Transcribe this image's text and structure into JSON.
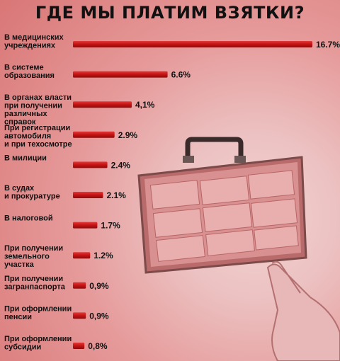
{
  "title": "ГДЕ МЫ ПЛАТИМ ВЗЯТКИ?",
  "colors": {
    "bar": "#cc1c1c",
    "bar_dark": "#8f0f0f",
    "background": "#e6a4a4",
    "text": "#111111"
  },
  "chart_data": {
    "type": "bar",
    "orientation": "horizontal",
    "title": "ГДЕ МЫ ПЛАТИМ ВЗЯТКИ?",
    "categories": [
      [
        "В медицинских",
        "учреждениях"
      ],
      [
        "В системе",
        "образования"
      ],
      [
        "В органах власти",
        "при получении",
        "различных",
        "справок"
      ],
      [
        "При регистрации",
        "автомобиля",
        "и при техосмотре"
      ],
      [
        "В милиции"
      ],
      [
        "В судах",
        "и прокуратуре"
      ],
      [
        "В налоговой"
      ],
      [
        "При получении",
        "земельного",
        "участка"
      ],
      [
        "При получении",
        "загранпаспорта"
      ],
      [
        "При оформлении",
        "пенсии"
      ],
      [
        "При оформлении",
        "субсидии"
      ]
    ],
    "values": [
      16.7,
      6.6,
      4.1,
      2.9,
      2.4,
      2.1,
      1.7,
      1.2,
      0.9,
      0.9,
      0.8
    ],
    "value_labels": [
      "16.7%",
      "6.6%",
      "4,1%",
      "2.9%",
      "2.4%",
      "2.1%",
      "1.7%",
      "1.2%",
      "0,9%",
      "0,9%",
      "0,8%"
    ],
    "xlim": [
      0,
      16.7
    ],
    "grid": false,
    "legend": "none"
  }
}
